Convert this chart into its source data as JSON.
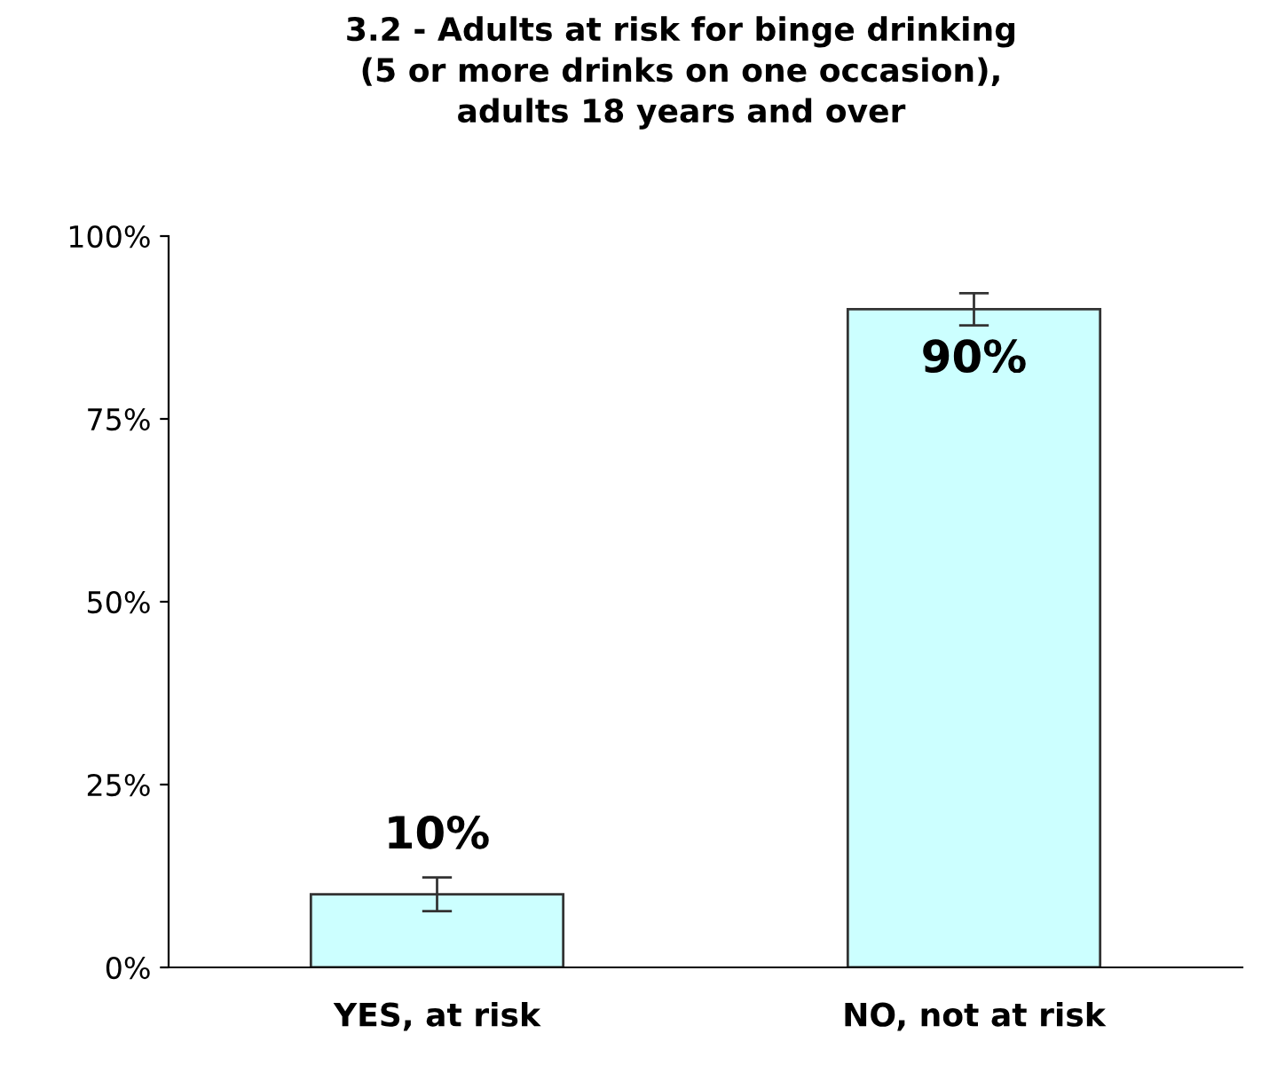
{
  "chart_data": {
    "type": "bar",
    "title": "3.2 - Adults at risk for binge drinking\n(5 or more drinks on one occasion),\nadults 18 years and over",
    "categories": [
      "YES, at risk",
      "NO, not at risk"
    ],
    "values": [
      10,
      90
    ],
    "color": "#ccffff",
    "errors": [
      2.3,
      2.2
    ],
    "value_labels": [
      "10%",
      "90%"
    ],
    "ylim": [
      0,
      100
    ],
    "yticks": [
      {
        "value": 0,
        "label": "0%"
      },
      {
        "value": 25,
        "label": "25%"
      },
      {
        "value": 50,
        "label": "50%"
      },
      {
        "value": 75,
        "label": "75%"
      },
      {
        "value": 100,
        "label": "100%"
      }
    ],
    "grid": false,
    "legend": false
  }
}
